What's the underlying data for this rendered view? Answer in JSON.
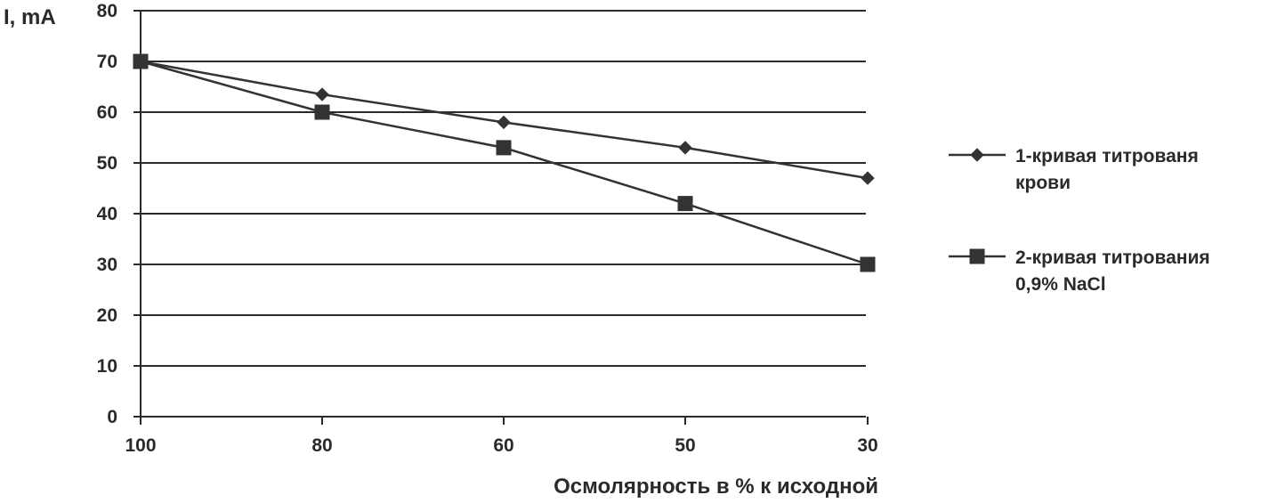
{
  "chart_data": {
    "type": "line",
    "title": "",
    "ylabel": "I, mA",
    "xlabel": "Осмолярность в % к исходной",
    "categories": [
      "100",
      "80",
      "60",
      "50",
      "30"
    ],
    "yticks": [
      "0",
      "10",
      "20",
      "30",
      "40",
      "50",
      "60",
      "70",
      "80"
    ],
    "ylim": [
      0,
      80
    ],
    "grid": true,
    "legend_position": "right",
    "series": [
      {
        "name_lines": [
          "1-кривая титрованя",
          "крови"
        ],
        "marker": "diamond",
        "values": [
          70,
          63.5,
          58,
          53,
          47
        ]
      },
      {
        "name_lines": [
          "2-кривая титрования",
          "0,9% NaCl"
        ],
        "marker": "square",
        "values": [
          70,
          60,
          53,
          42,
          30
        ]
      }
    ],
    "colors": {
      "line": "#333333",
      "grid": "#2a2a2a",
      "text": "#2a2a2a"
    }
  }
}
